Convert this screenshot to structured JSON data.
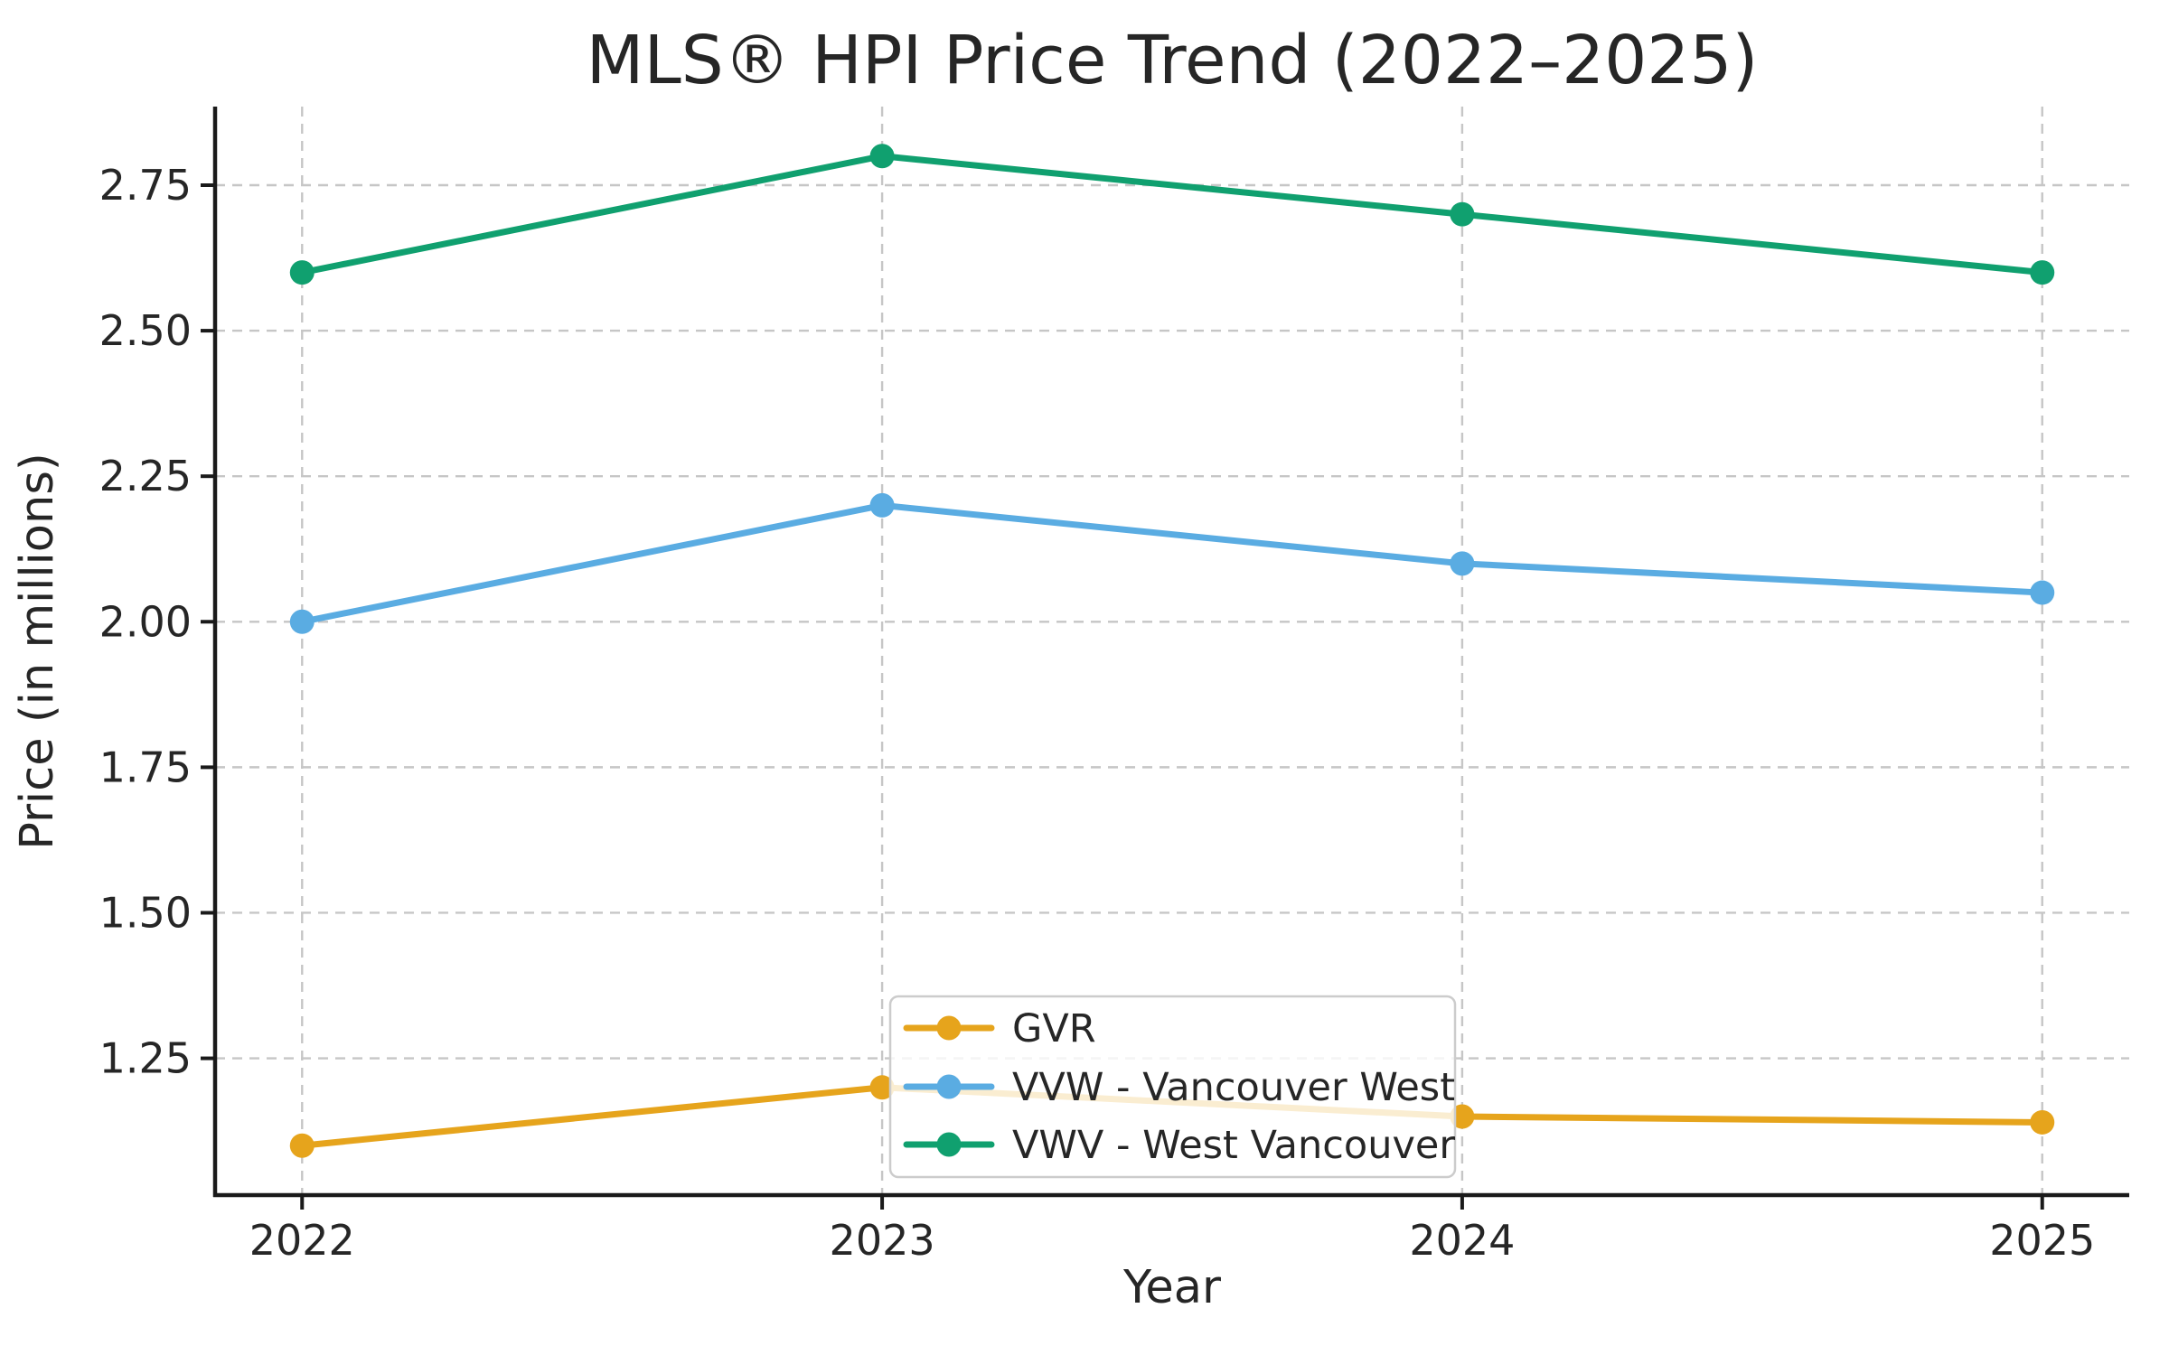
{
  "chart": {
    "title": "MLS® HPI Price Trend (2022–2025)",
    "xlabel": "Year",
    "ylabel": "Price (in millions)"
  },
  "chart_data": {
    "type": "line",
    "title": "MLS® HPI Price Trend (2022–2025)",
    "xlabel": "Year",
    "ylabel": "Price (in millions)",
    "x": [
      2022,
      2023,
      2024,
      2025
    ],
    "x_tick_labels": [
      "2022",
      "2023",
      "2024",
      "2025"
    ],
    "y_ticks": [
      1.25,
      1.5,
      1.75,
      2.0,
      2.25,
      2.5,
      2.75
    ],
    "y_tick_labels": [
      "1.25",
      "1.50",
      "1.75",
      "2.00",
      "2.25",
      "2.50",
      "2.75"
    ],
    "xlim": [
      2021.85,
      2025.15
    ],
    "ylim": [
      1.015,
      2.885
    ],
    "grid": true,
    "grid_line_style": "dashed",
    "legend_position": "lower center inside plot",
    "series": [
      {
        "name": "GVR",
        "color": "#E6A41C",
        "values": [
          1.1,
          1.2,
          1.15,
          1.14
        ]
      },
      {
        "name": "VVW - Vancouver West",
        "color": "#5AACE2",
        "values": [
          2.0,
          2.2,
          2.1,
          2.05
        ]
      },
      {
        "name": "VWV - West Vancouver",
        "color": "#10A06F",
        "values": [
          2.6,
          2.8,
          2.7,
          2.6
        ]
      }
    ]
  },
  "style": {
    "text_color": "#262626",
    "grid_color": "#c6c6c6",
    "spine_color": "#1a1a1a",
    "legend_border_color": "#cccccc",
    "legend_background": "#ffffff"
  }
}
